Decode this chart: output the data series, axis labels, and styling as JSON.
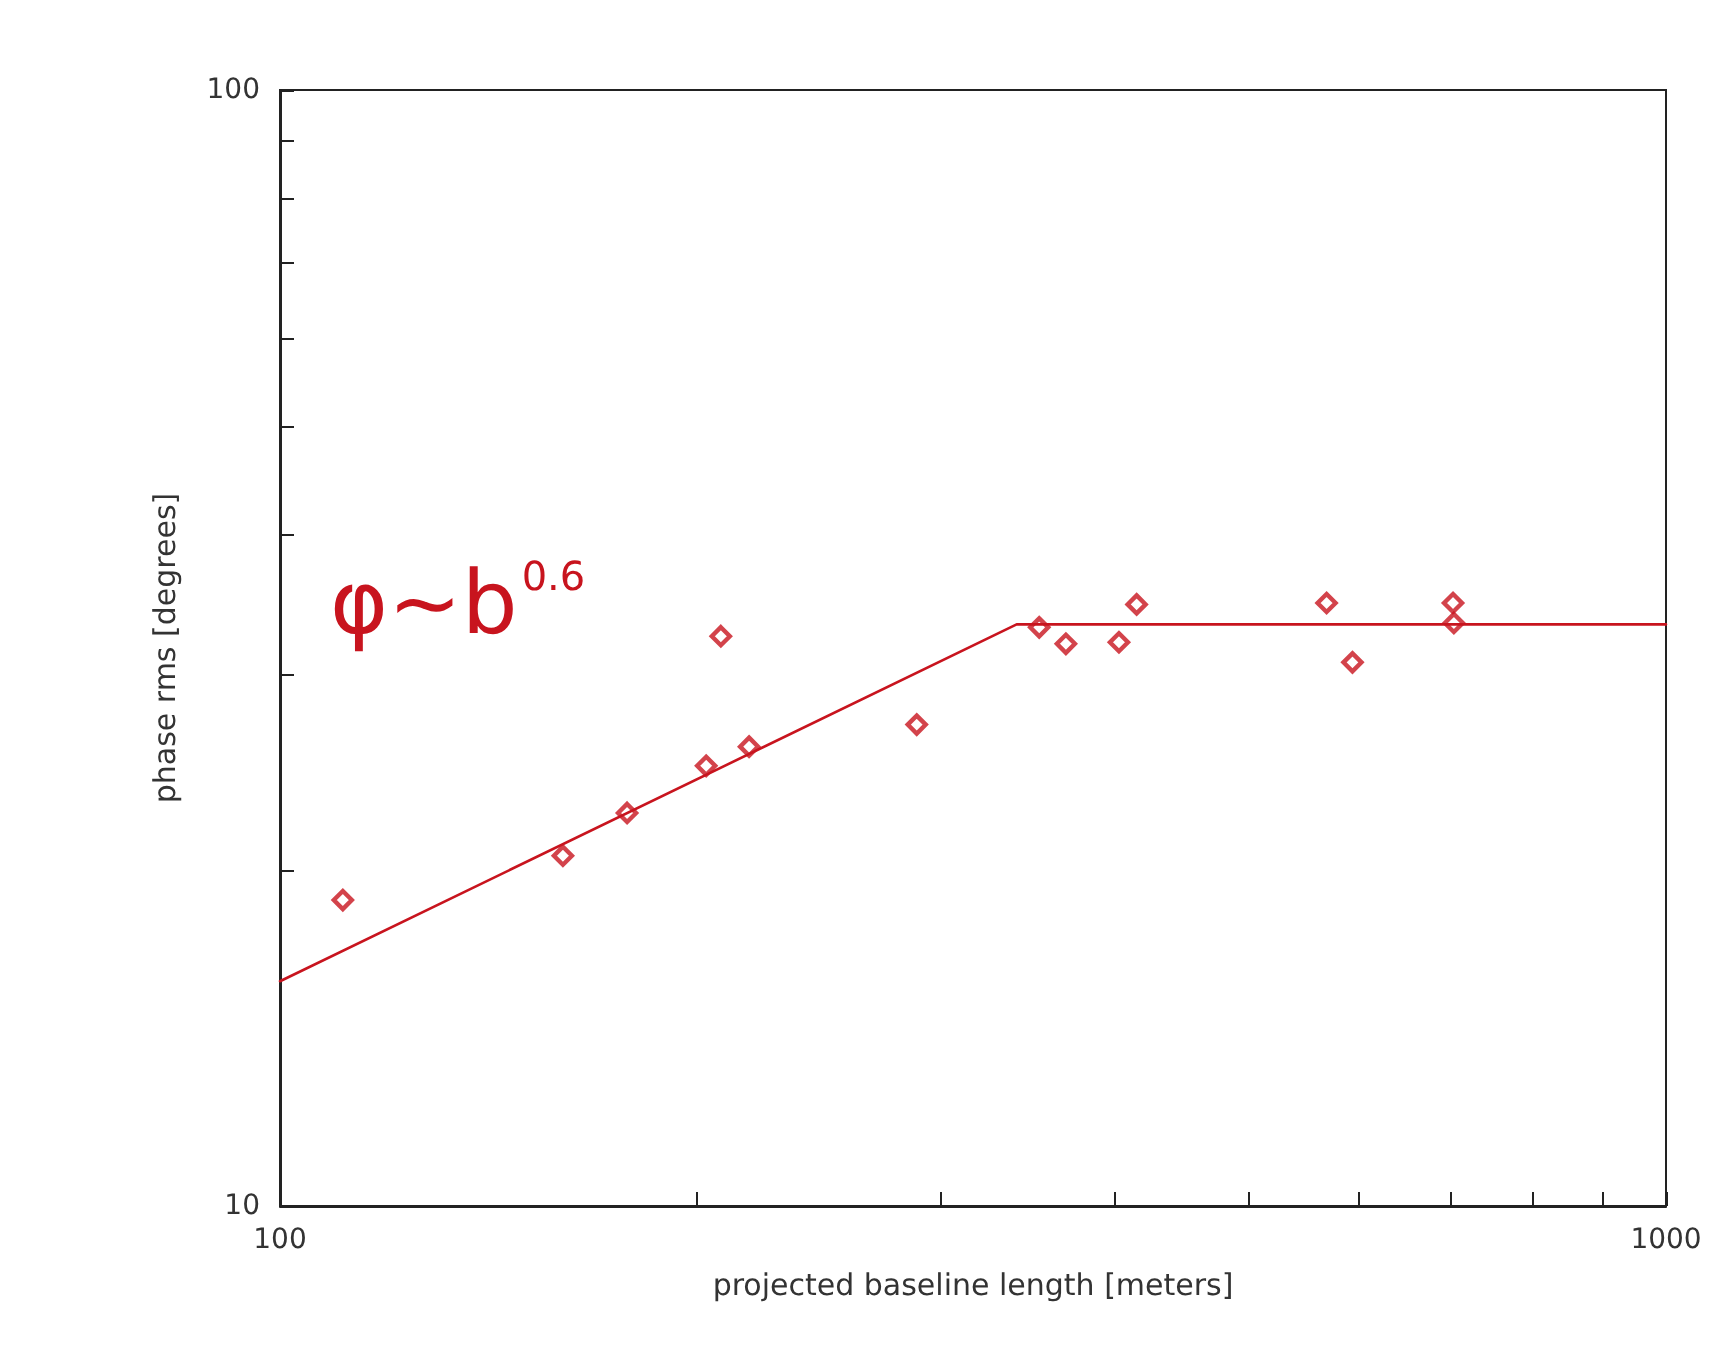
{
  "chart_data": {
    "type": "scatter",
    "xlabel": "projected baseline length [meters]",
    "ylabel": "phase rms [degrees]",
    "log": "xy",
    "grid": false,
    "marker": "diamond",
    "xlim": [
      100,
      1000
    ],
    "ylim": [
      10,
      100
    ],
    "xticks": [
      100,
      {
        "value": 200,
        "label": null
      },
      {
        "value": 300,
        "label": null
      },
      {
        "value": 400,
        "label": null
      },
      {
        "value": 500,
        "label": null
      },
      {
        "value": 600,
        "label": null
      },
      {
        "value": 700,
        "label": null
      },
      {
        "value": 800,
        "label": null
      },
      {
        "value": 900,
        "label": null
      },
      1000
    ],
    "yticks": [
      10,
      {
        "value": 20,
        "label": null
      },
      {
        "value": 30,
        "label": null
      },
      {
        "value": 40,
        "label": null
      },
      {
        "value": 50,
        "label": null
      },
      {
        "value": 60,
        "label": null
      },
      {
        "value": 70,
        "label": null
      },
      {
        "value": 80,
        "label": null
      },
      {
        "value": 90,
        "label": null
      },
      100
    ],
    "annotations": [
      "φ~b$^{0.6}$"
    ],
    "series": [
      {
        "color": "#c8141e",
        "x": [
          111,
          160,
          178,
          203,
          218,
          208,
          288,
          353,
          369,
          403,
          415,
          569,
          594,
          702,
          703
        ],
        "values": [
          18.8,
          20.6,
          22.5,
          24.8,
          25.8,
          32.4,
          27.0,
          33.0,
          31.9,
          32.0,
          34.6,
          34.7,
          30.7,
          34.7,
          33.3
        ]
      },
      {
        "type": "line",
        "color": "#c8141e",
        "marker": "none",
        "line_style": "solid",
        "x": [
          100,
          340,
          1000
        ],
        "values": [
          15.9,
          33.2,
          33.2
        ]
      }
    ]
  }
}
